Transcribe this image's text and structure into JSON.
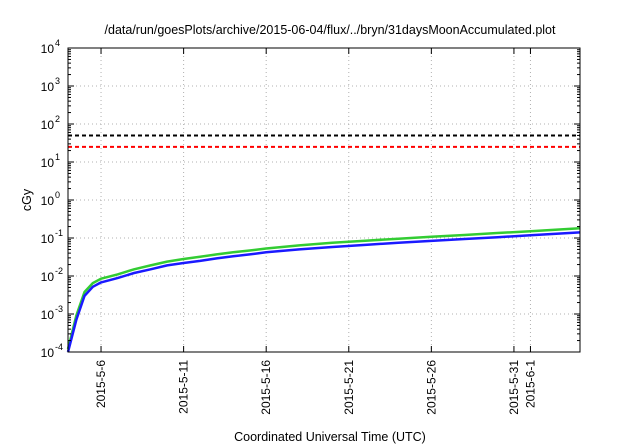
{
  "chart_data": {
    "type": "line",
    "title": "/data/run/goesPlots/archive/2015-06-04/flux/../bryn/31daysMoonAccumulated.plot",
    "xlabel": "Coordinated Universal Time (UTC)",
    "ylabel": "cGy",
    "y_scale": "log",
    "ylim": [
      0.0001,
      10000
    ],
    "xlim": [
      "2015-05-04",
      "2015-06-04"
    ],
    "grid": true,
    "x_ticks": [
      {
        "date": "2015-05-06",
        "label": "2015-5-6"
      },
      {
        "date": "2015-05-11",
        "label": "2015-5-11"
      },
      {
        "date": "2015-05-16",
        "label": "2015-5-16"
      },
      {
        "date": "2015-05-21",
        "label": "2015-5-21"
      },
      {
        "date": "2015-05-26",
        "label": "2015-5-26"
      },
      {
        "date": "2015-05-31",
        "label": "2015-5-31"
      },
      {
        "date": "2015-06-01",
        "label": "2015-6-1"
      }
    ],
    "y_ticks": [
      {
        "value": 0.0001,
        "base": "10",
        "exp": "-4"
      },
      {
        "value": 0.001,
        "base": "10",
        "exp": "-3"
      },
      {
        "value": 0.01,
        "base": "10",
        "exp": "-2"
      },
      {
        "value": 0.1,
        "base": "10",
        "exp": "-1"
      },
      {
        "value": 1,
        "base": "10",
        "exp": "0"
      },
      {
        "value": 10,
        "base": "10",
        "exp": "1"
      },
      {
        "value": 100,
        "base": "10",
        "exp": "2"
      },
      {
        "value": 1000,
        "base": "10",
        "exp": "3"
      },
      {
        "value": 10000,
        "base": "10",
        "exp": "4"
      }
    ],
    "reference_lines": [
      {
        "value": 50,
        "color": "#000000"
      },
      {
        "value": 25,
        "color": "#ff0000"
      }
    ],
    "series": [
      {
        "color": "#33cc33",
        "x": [
          "2015-05-04",
          "2015-05-04T12:00",
          "2015-05-05",
          "2015-05-05T12:00",
          "2015-05-06",
          "2015-05-07",
          "2015-05-08",
          "2015-05-09",
          "2015-05-10",
          "2015-05-11",
          "2015-05-12",
          "2015-05-13",
          "2015-05-14",
          "2015-05-15",
          "2015-05-16",
          "2015-05-18",
          "2015-05-20",
          "2015-05-22",
          "2015-05-24",
          "2015-05-26",
          "2015-05-28",
          "2015-05-30",
          "2015-06-01",
          "2015-06-04"
        ],
        "values": [
          0.00012,
          0.0009,
          0.0038,
          0.0065,
          0.0085,
          0.011,
          0.015,
          0.019,
          0.024,
          0.028,
          0.032,
          0.037,
          0.042,
          0.047,
          0.053,
          0.064,
          0.075,
          0.085,
          0.096,
          0.108,
          0.12,
          0.135,
          0.15,
          0.18
        ]
      },
      {
        "color": "#1a1aff",
        "x": [
          "2015-05-04",
          "2015-05-04T12:00",
          "2015-05-05",
          "2015-05-05T12:00",
          "2015-05-06",
          "2015-05-07",
          "2015-05-08",
          "2015-05-09",
          "2015-05-10",
          "2015-05-11",
          "2015-05-12",
          "2015-05-13",
          "2015-05-14",
          "2015-05-15",
          "2015-05-16",
          "2015-05-18",
          "2015-05-20",
          "2015-05-22",
          "2015-05-24",
          "2015-05-26",
          "2015-05-28",
          "2015-05-30",
          "2015-06-01",
          "2015-06-04"
        ],
        "values": [
          0.0001,
          0.0007,
          0.003,
          0.0052,
          0.0068,
          0.0088,
          0.012,
          0.015,
          0.019,
          0.022,
          0.025,
          0.029,
          0.033,
          0.037,
          0.042,
          0.05,
          0.058,
          0.066,
          0.075,
          0.084,
          0.094,
          0.105,
          0.118,
          0.14
        ]
      }
    ]
  }
}
